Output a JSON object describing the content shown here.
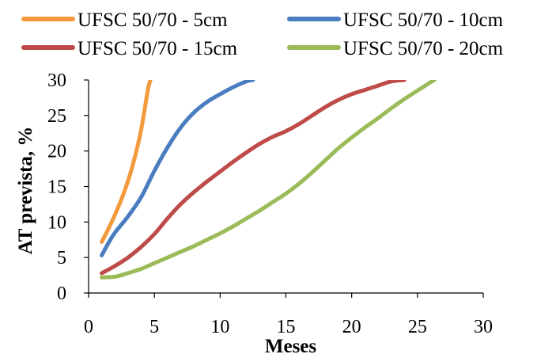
{
  "chart_data": {
    "type": "line",
    "title": "",
    "xlabel": "Meses",
    "ylabel": "AT prevista, %",
    "xlim": [
      0,
      30
    ],
    "ylim": [
      0,
      30
    ],
    "x_ticks": [
      "0",
      "5",
      "10",
      "15",
      "20",
      "25",
      "30"
    ],
    "y_ticks": [
      "0",
      "5",
      "10",
      "15",
      "20",
      "25",
      "30"
    ],
    "grid": false,
    "legend_position": "top",
    "series": [
      {
        "name": "UFSC 50/70 - 5cm",
        "color": "#F39A3C",
        "points": [
          [
            1,
            7.2
          ],
          [
            1.5,
            9
          ],
          [
            2,
            11
          ],
          [
            2.5,
            13.2
          ],
          [
            3,
            15.8
          ],
          [
            3.5,
            19
          ],
          [
            4,
            23
          ],
          [
            4.5,
            28.5
          ],
          [
            4.7,
            30
          ]
        ]
      },
      {
        "name": "UFSC 50/70 - 10cm",
        "color": "#4A7DC0",
        "points": [
          [
            1,
            5.3
          ],
          [
            1.5,
            7
          ],
          [
            2,
            8.5
          ],
          [
            3,
            10.8
          ],
          [
            4,
            13.5
          ],
          [
            5,
            17.2
          ],
          [
            6,
            20.5
          ],
          [
            7,
            23.3
          ],
          [
            8,
            25.4
          ],
          [
            9,
            26.9
          ],
          [
            10,
            28
          ],
          [
            11,
            29
          ],
          [
            12,
            29.8
          ],
          [
            12.5,
            30
          ]
        ]
      },
      {
        "name": "UFSC 50/70 - 15cm",
        "color": "#BE4B48",
        "points": [
          [
            1,
            2.8
          ],
          [
            2,
            3.8
          ],
          [
            3,
            5
          ],
          [
            4,
            6.5
          ],
          [
            5,
            8.3
          ],
          [
            6,
            10.5
          ],
          [
            7,
            12.5
          ],
          [
            8,
            14.2
          ],
          [
            9,
            15.7
          ],
          [
            10,
            17.1
          ],
          [
            11,
            18.5
          ],
          [
            12,
            19.8
          ],
          [
            13,
            21
          ],
          [
            14,
            22
          ],
          [
            15,
            22.8
          ],
          [
            16,
            23.8
          ],
          [
            17,
            25
          ],
          [
            18,
            26.2
          ],
          [
            19,
            27.2
          ],
          [
            20,
            28
          ],
          [
            21,
            28.6
          ],
          [
            22,
            29.2
          ],
          [
            23,
            29.8
          ],
          [
            24,
            30
          ]
        ]
      },
      {
        "name": "UFSC 50/70 - 20cm",
        "color": "#9BBB59",
        "points": [
          [
            1,
            2.2
          ],
          [
            2,
            2.3
          ],
          [
            3,
            2.8
          ],
          [
            4,
            3.4
          ],
          [
            5,
            4.2
          ],
          [
            6,
            5
          ],
          [
            7,
            5.8
          ],
          [
            8,
            6.6
          ],
          [
            9,
            7.5
          ],
          [
            10,
            8.4
          ],
          [
            11,
            9.4
          ],
          [
            12,
            10.5
          ],
          [
            13,
            11.6
          ],
          [
            14,
            12.8
          ],
          [
            15,
            14
          ],
          [
            16,
            15.4
          ],
          [
            17,
            17
          ],
          [
            18,
            18.7
          ],
          [
            19,
            20.4
          ],
          [
            20,
            21.9
          ],
          [
            21,
            23.3
          ],
          [
            22,
            24.6
          ],
          [
            23,
            26
          ],
          [
            24,
            27.3
          ],
          [
            25,
            28.5
          ],
          [
            26,
            29.7
          ],
          [
            26.3,
            30
          ]
        ]
      }
    ]
  }
}
